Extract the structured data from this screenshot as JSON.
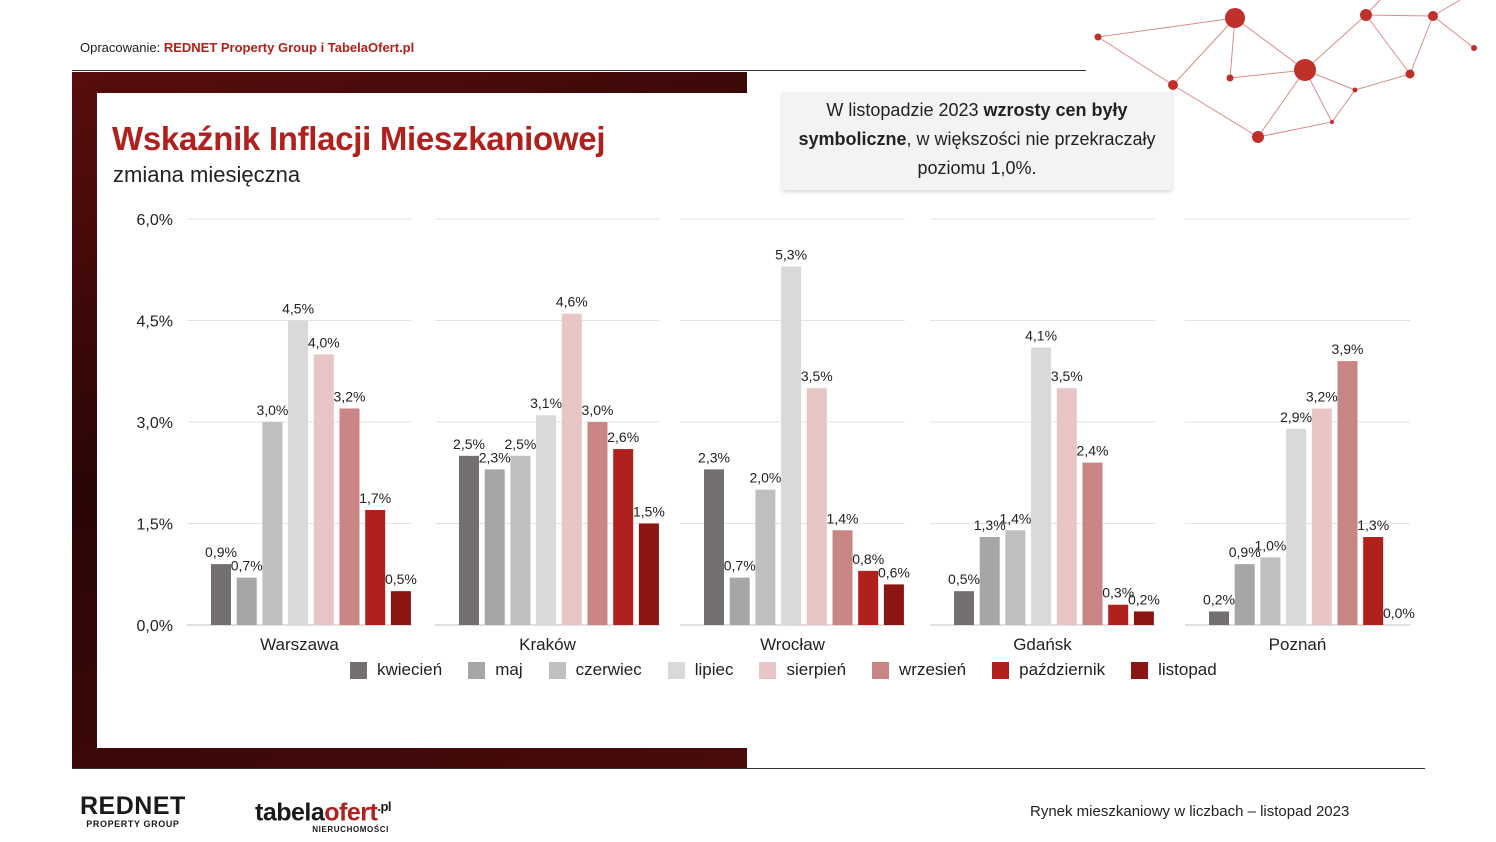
{
  "header": {
    "credit_prefix": "Opracowanie: ",
    "credit_bold": "REDNET Property Group i TabelaOfert.pl"
  },
  "title": "Wskaźnik Inflacji Mieszkaniowej",
  "subtitle": "zmiana miesięczna",
  "callout": {
    "part1": "W listopadzie 2023 ",
    "bold": "wzrosty cen były symboliczne",
    "part2": ", w większości nie przekraczały poziomu 1,0%."
  },
  "footer": {
    "report_title": "Rynek mieszkaniowy w liczbach – listopad  2023",
    "logo_rednet_main": "REDNET",
    "logo_rednet_sub": "PROPERTY GROUP",
    "logo_tabela_a": "tabela",
    "logo_tabela_b": "ofert",
    "logo_tabela_sup": ".pl",
    "logo_tabela_sub": "NIERUCHOMOŚCI"
  },
  "colors": {
    "accent": "#b0201c",
    "series": [
      "#757070",
      "#a6a6a6",
      "#bfbfbf",
      "#d9d9d9",
      "#e8c6c6",
      "#c98584",
      "#b0201c",
      "#8b1512"
    ]
  },
  "chart_data": {
    "type": "bar",
    "title": "Wskaźnik Inflacji Mieszkaniowej",
    "subtitle": "zmiana miesięczna",
    "categories": [
      "Warszawa",
      "Kraków",
      "Wrocław",
      "Gdańsk",
      "Poznań"
    ],
    "yticks": [
      "0,0%",
      "1,5%",
      "3,0%",
      "4,5%",
      "6,0%"
    ],
    "ylim": [
      0,
      6
    ],
    "grid": true,
    "legend_position": "bottom",
    "series": [
      {
        "name": "kwiecień",
        "values": [
          0.9,
          2.5,
          2.3,
          0.5,
          0.2
        ],
        "labels": [
          "0,9%",
          "2,5%",
          "2,3%",
          "0,5%",
          "0,2%"
        ]
      },
      {
        "name": "maj",
        "values": [
          0.7,
          2.3,
          0.7,
          1.3,
          0.9
        ],
        "labels": [
          "0,7%",
          "2,3%",
          "0,7%",
          "1,3%",
          "0,9%"
        ]
      },
      {
        "name": "czerwiec",
        "values": [
          3.0,
          2.5,
          2.0,
          1.4,
          1.0
        ],
        "labels": [
          "3,0%",
          "2,5%",
          "2,0%",
          "1,4%",
          "1,0%"
        ]
      },
      {
        "name": "lipiec",
        "values": [
          4.5,
          3.1,
          5.3,
          4.1,
          2.9
        ],
        "labels": [
          "4,5%",
          "3,1%",
          "5,3%",
          "4,1%",
          "2,9%"
        ]
      },
      {
        "name": "sierpień",
        "values": [
          4.0,
          4.6,
          3.5,
          3.5,
          3.2
        ],
        "labels": [
          "4,0%",
          "4,6%",
          "3,5%",
          "3,5%",
          "3,2%"
        ]
      },
      {
        "name": "wrzesień",
        "values": [
          3.2,
          3.0,
          1.4,
          2.4,
          3.9
        ],
        "labels": [
          "3,2%",
          "3,0%",
          "1,4%",
          "2,4%",
          "3,9%"
        ]
      },
      {
        "name": "październik",
        "values": [
          1.7,
          2.6,
          0.8,
          0.3,
          1.3
        ],
        "labels": [
          "1,7%",
          "2,6%",
          "0,8%",
          "0,3%",
          "1,3%"
        ]
      },
      {
        "name": "listopad",
        "values": [
          0.5,
          1.5,
          0.6,
          0.2,
          0.0
        ],
        "labels": [
          "0,5%",
          "1,5%",
          "0,6%",
          "0,2%",
          "0,0%"
        ]
      }
    ]
  }
}
